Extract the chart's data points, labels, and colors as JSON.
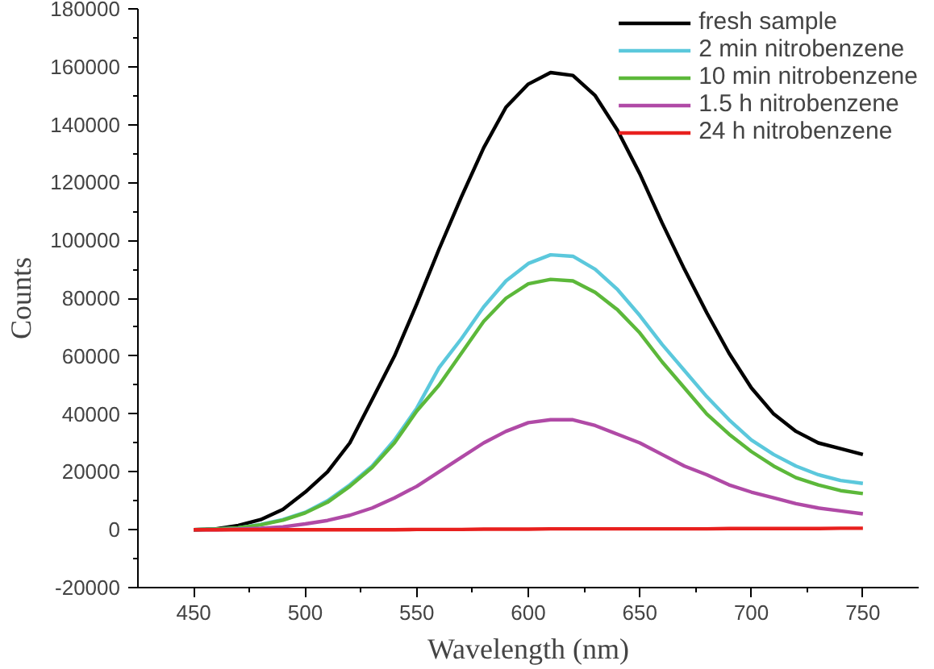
{
  "chart_data": {
    "type": "line",
    "xlabel": "Wavelength (nm)",
    "ylabel": "Counts",
    "xlim": [
      425,
      775
    ],
    "xticks": [
      450,
      500,
      550,
      600,
      650,
      700,
      750
    ],
    "ylim": [
      -20000,
      180000
    ],
    "yticks": [
      -20000,
      0,
      20000,
      40000,
      60000,
      80000,
      100000,
      120000,
      140000,
      160000,
      180000
    ],
    "grid": false,
    "legend": "top right",
    "line_style": "solid",
    "marker": "none",
    "x": [
      450,
      460,
      470,
      480,
      490,
      500,
      510,
      520,
      530,
      540,
      550,
      560,
      570,
      580,
      590,
      600,
      610,
      620,
      630,
      640,
      650,
      660,
      670,
      680,
      690,
      700,
      710,
      720,
      730,
      740,
      750
    ],
    "series": [
      {
        "name": "fresh sample",
        "color": "#000000",
        "values": [
          0,
          300,
          1500,
          3500,
          7000,
          13000,
          20000,
          30000,
          45000,
          60000,
          78000,
          97000,
          115000,
          132000,
          146000,
          154000,
          158000,
          157000,
          150000,
          138000,
          123000,
          106000,
          90000,
          75000,
          61000,
          49000,
          40000,
          34000,
          30000,
          28000,
          26000
        ]
      },
      {
        "name": "2 min nitrobenzene",
        "color": "#5bc8dc",
        "values": [
          0,
          200,
          600,
          1800,
          3500,
          6000,
          10000,
          15500,
          22000,
          31000,
          42000,
          56000,
          66000,
          77000,
          86000,
          92000,
          95000,
          94500,
          90000,
          83000,
          74000,
          64000,
          55000,
          46000,
          38000,
          31000,
          26000,
          22000,
          19000,
          17000,
          16000
        ]
      },
      {
        "name": "10 min nitrobenzene",
        "color": "#5cb83a",
        "values": [
          0,
          200,
          600,
          1700,
          3300,
          5800,
          9500,
          15000,
          21500,
          30000,
          41000,
          50000,
          61000,
          72000,
          80000,
          85000,
          86500,
          86000,
          82000,
          76000,
          68000,
          58000,
          49000,
          40000,
          33000,
          27000,
          22000,
          18000,
          15500,
          13500,
          12500
        ]
      },
      {
        "name": "1.5 h nitrobenzene",
        "color": "#b04aa6",
        "values": [
          0,
          0,
          200,
          500,
          1000,
          2000,
          3200,
          5000,
          7500,
          11000,
          15000,
          20000,
          25000,
          30000,
          34000,
          37000,
          38000,
          38000,
          36000,
          33000,
          30000,
          26000,
          22000,
          19000,
          15500,
          13000,
          11000,
          9000,
          7500,
          6500,
          5500
        ]
      },
      {
        "name": "24 h nitrobenzene",
        "color": "#e8201e",
        "values": [
          0,
          0,
          0,
          0,
          0,
          0,
          0,
          0,
          0,
          0,
          100,
          100,
          100,
          200,
          200,
          200,
          300,
          300,
          300,
          300,
          300,
          300,
          300,
          300,
          400,
          400,
          400,
          400,
          400,
          500,
          500
        ]
      }
    ]
  }
}
